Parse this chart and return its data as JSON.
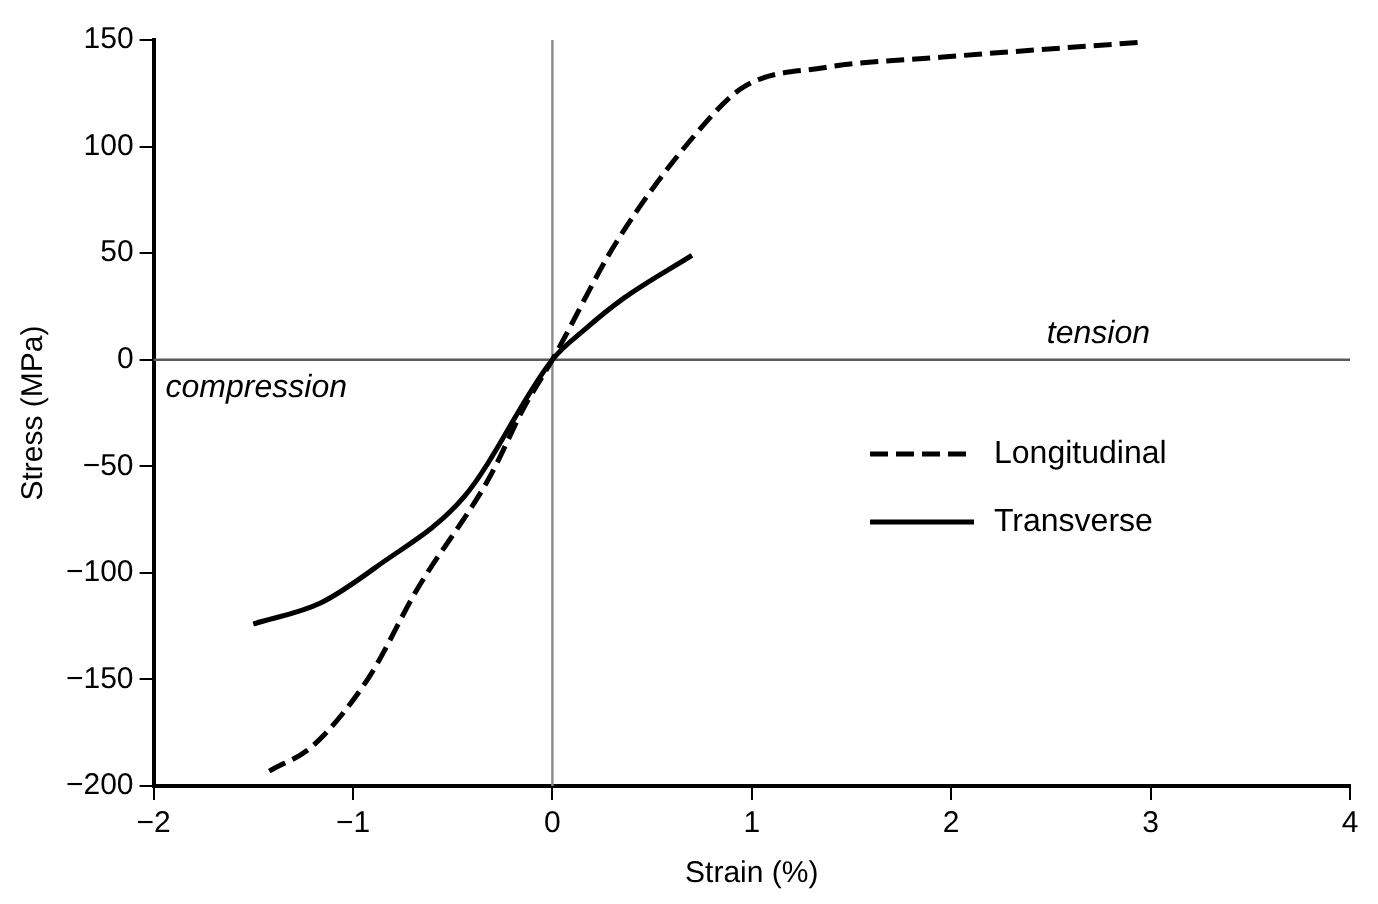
{
  "chart_data": {
    "type": "line",
    "xlabel": "Strain (%)",
    "ylabel": "Stress (MPa)",
    "xlim": [
      -2,
      4
    ],
    "xticks": [
      {
        "value": -2,
        "label": "−2"
      },
      {
        "value": -1,
        "label": "−1"
      },
      0,
      1,
      2,
      3,
      4
    ],
    "ylim": [
      -200,
      150
    ],
    "yticks": [
      {
        "value": -200,
        "label": "−200"
      },
      {
        "value": -150,
        "label": "−150"
      },
      {
        "value": -100,
        "label": "−100"
      },
      {
        "value": -50,
        "label": "−50"
      },
      0,
      50,
      100,
      150
    ],
    "series": [
      {
        "name": "Longitudinal",
        "color": "#000000",
        "line_style": "dashed",
        "x": [
          -1.42,
          -1.2,
          -0.92,
          -0.68,
          -0.32,
          -0.14,
          0,
          0.32,
          0.72,
          0.96,
          1.36,
          1.96,
          2.96
        ],
        "values": [
          -193,
          -181,
          -149,
          -108,
          -56,
          -22,
          0,
          55,
          106,
          128,
          137,
          142,
          149
        ]
      },
      {
        "name": "Transverse",
        "color": "#000000",
        "line_style": "solid",
        "x": [
          -1.5,
          -1.16,
          -0.88,
          -0.44,
          0,
          0.16,
          0.36,
          0.7
        ],
        "values": [
          -124,
          -114,
          -97,
          -64,
          0,
          14,
          29,
          49
        ]
      }
    ],
    "ref_lines": [
      {
        "axis": "x",
        "value": 0,
        "color": "#8a8a8a"
      },
      {
        "axis": "y",
        "value": 0,
        "color": "#5a5a5a"
      }
    ],
    "annotations": [
      "tension",
      "compression"
    ],
    "legend": "bottom right",
    "grid": false,
    "marker": "none"
  }
}
